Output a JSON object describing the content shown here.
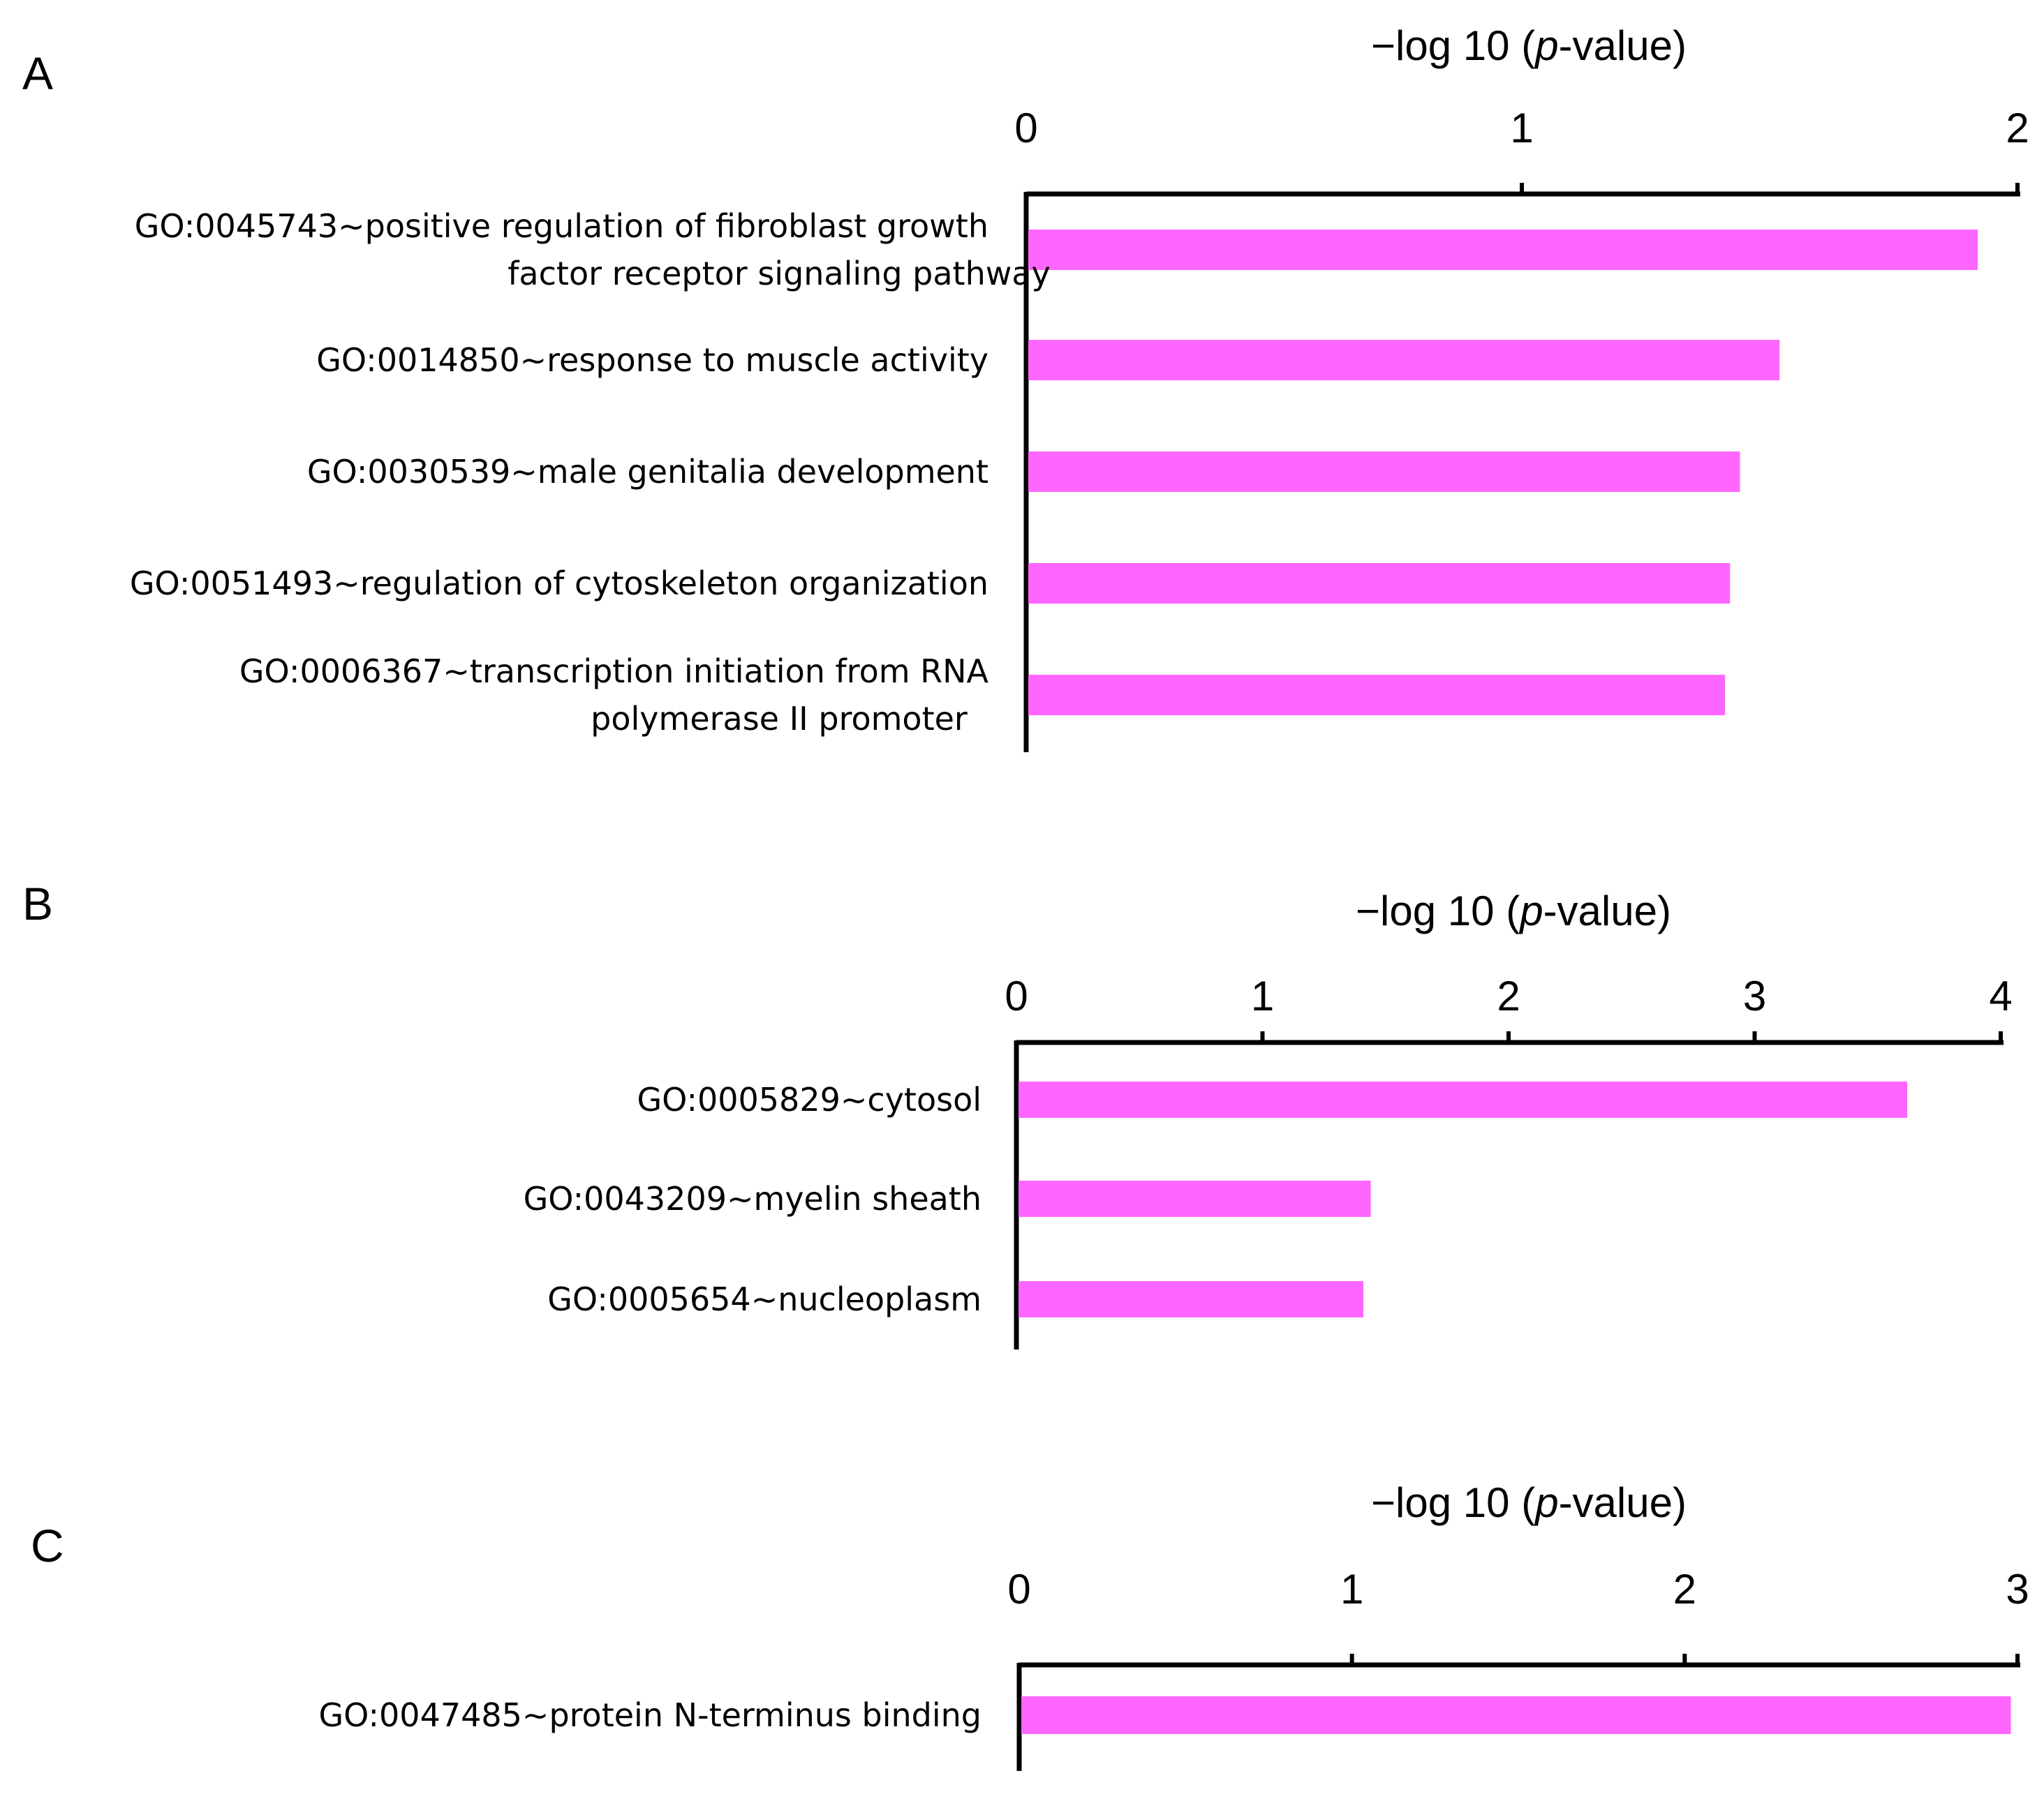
{
  "colors": {
    "bar": "#ff66ff",
    "axis": "#000000",
    "text": "#000000"
  },
  "chart_data": [
    {
      "type": "bar",
      "orientation": "horizontal",
      "panel": "A",
      "axis_title": "−log 10 (p-value)",
      "x_ticks": [
        "0",
        "1",
        "2"
      ],
      "xlim": [
        0,
        2
      ],
      "x_axis_position": "top",
      "categories": [
        "GO:0045743~positive regulation of fibroblast growth factor receptor signaling pathway",
        "GO:0014850~response to muscle activity",
        "GO:0030539~male genitalia development",
        "GO:0051493~regulation of cytoskeleton organization",
        "GO:0006367~transcription initiation from RNA polymerase II promoter"
      ],
      "category_lines": [
        [
          "GO:0045743~positive regulation of fibroblast growth",
          "factor receptor signaling pathway"
        ],
        [
          "GO:0014850~response to muscle activity"
        ],
        [
          "GO:0030539~male genitalia development"
        ],
        [
          "GO:0051493~regulation of cytoskeleton organization"
        ],
        [
          "GO:0006367~transcription initiation from RNA",
          "polymerase II promoter"
        ]
      ],
      "values": [
        1.92,
        1.52,
        1.44,
        1.42,
        1.41
      ],
      "grid": false,
      "legend": "none"
    },
    {
      "type": "bar",
      "orientation": "horizontal",
      "panel": "B",
      "axis_title": "−log 10 (p-value)",
      "x_ticks": [
        "0",
        "1",
        "2",
        "3",
        "4"
      ],
      "xlim": [
        0,
        4
      ],
      "x_axis_position": "top",
      "categories": [
        "GO:0005829~cytosol",
        "GO:0043209~myelin sheath",
        "GO:0005654~nucleoplasm"
      ],
      "category_lines": [
        [
          "GO:0005829~cytosol"
        ],
        [
          "GO:0043209~myelin sheath"
        ],
        [
          "GO:0005654~nucleoplasm"
        ]
      ],
      "values": [
        3.62,
        1.44,
        1.41
      ],
      "grid": false,
      "legend": "none"
    },
    {
      "type": "bar",
      "orientation": "horizontal",
      "panel": "C",
      "axis_title": "−log 10 (p-value)",
      "x_ticks": [
        "0",
        "1",
        "2",
        "3"
      ],
      "xlim": [
        0,
        3
      ],
      "x_axis_position": "top",
      "categories": [
        "GO:0047485~protein N-terminus binding"
      ],
      "category_lines": [
        [
          "GO:0047485~protein N-terminus binding"
        ]
      ],
      "values": [
        2.98
      ],
      "grid": false,
      "legend": "none"
    }
  ]
}
